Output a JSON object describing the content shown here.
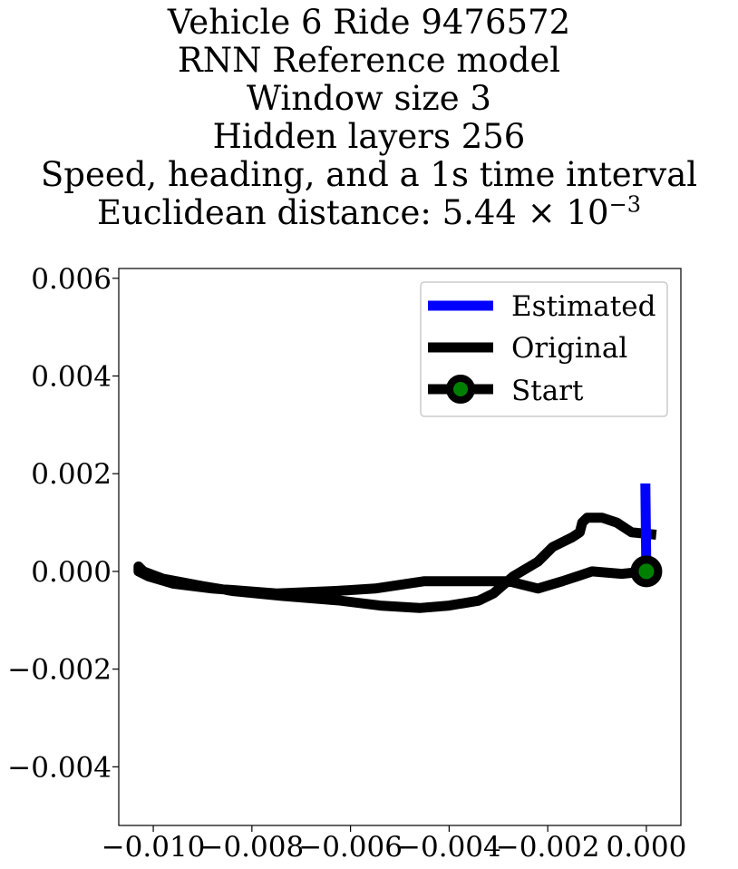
{
  "chart_data": {
    "type": "line",
    "title_lines": [
      "Vehicle 6 Ride 9476572",
      "RNN Reference model",
      "Window size 3",
      "Hidden layers 256",
      "Speed, heading, and a 1s time interval"
    ],
    "title_distance_prefix": "Euclidean distance: 5.44",
    "title_distance_times": "×",
    "title_distance_base": "10",
    "title_distance_exponent": "−3",
    "xlabel": "",
    "ylabel": "",
    "xlim": [
      -0.0107,
      0.0007
    ],
    "ylim": [
      -0.0052,
      0.0062
    ],
    "x_ticks": [
      -0.01,
      -0.008,
      -0.006,
      -0.004,
      -0.002,
      0.0
    ],
    "x_tick_labels": [
      "−0.010",
      "−0.008",
      "−0.006",
      "−0.004",
      "−0.002",
      "0.000"
    ],
    "y_ticks": [
      0.006,
      0.004,
      0.002,
      0.0,
      -0.002,
      -0.004
    ],
    "y_tick_labels": [
      "0.006",
      "0.004",
      "0.002",
      "0.000",
      "−0.002",
      "−0.004"
    ],
    "grid": false,
    "legend_position": "top-right",
    "series": [
      {
        "name": "Estimated",
        "color": "#0000ff",
        "x": [
          0.0,
          -2e-05
        ],
        "y": [
          0.0,
          0.0018
        ]
      },
      {
        "name": "Original",
        "color": "#000000",
        "x": [
          0.0,
          -0.0005,
          -0.0011,
          -0.0017,
          -0.0022,
          -0.0028,
          -0.0036,
          -0.0045,
          -0.0055,
          -0.0063,
          -0.0075,
          -0.0088,
          -0.0096,
          -0.0101,
          -0.0103,
          -0.0103,
          -0.0102,
          -0.0098,
          -0.009,
          -0.0084,
          -0.0074,
          -0.0062,
          -0.0054,
          -0.0046,
          -0.004,
          -0.0034,
          -0.0031,
          -0.0027,
          -0.0022,
          -0.0019,
          -0.0015,
          -0.00135,
          -0.0013,
          -0.0012,
          -0.0009,
          -0.0006,
          -0.0003,
          0.0002
        ],
        "y": [
          0.0,
          -5e-05,
          0.0,
          -0.0002,
          -0.00035,
          -0.0002,
          -0.0002,
          -0.0002,
          -0.00035,
          -0.0004,
          -0.00045,
          -0.00035,
          -0.00025,
          -0.0001,
          0.0,
          0.0001,
          0.0,
          -0.00015,
          -0.0003,
          -0.0004,
          -0.0005,
          -0.0006,
          -0.0007,
          -0.00075,
          -0.0007,
          -0.0006,
          -0.00045,
          -0.0001,
          0.0002,
          0.0005,
          0.0007,
          0.0008,
          0.001,
          0.0011,
          0.0011,
          0.001,
          0.0008,
          0.00075
        ]
      },
      {
        "name": "Start",
        "color": "#000000",
        "marker_color": "#008000",
        "x": [
          0.0
        ],
        "y": [
          0.0
        ]
      }
    ]
  }
}
